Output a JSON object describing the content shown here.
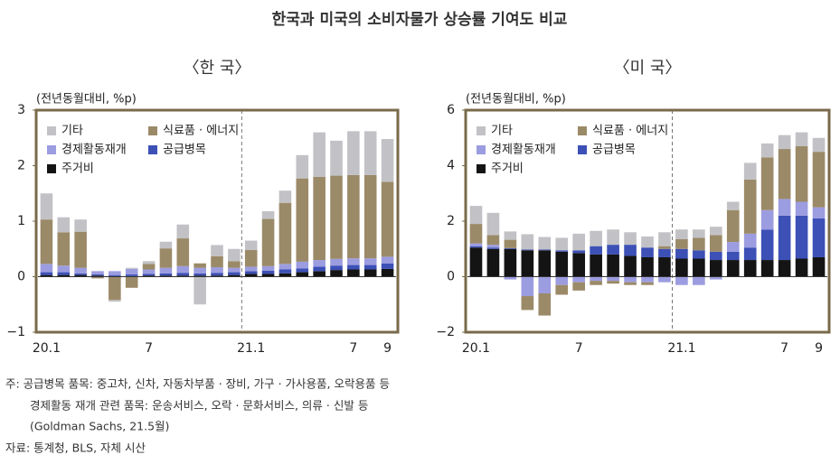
{
  "title": "한국과 미국의 소비자물가 상승률 기여도 비교",
  "chart_data": [
    {
      "type": "bar",
      "stacked": true,
      "subtitle": "〈한 국〉",
      "unit": "(전년동월대비, %p)",
      "categories": [
        "20.1",
        null,
        null,
        null,
        null,
        null,
        "7",
        null,
        null,
        null,
        null,
        null,
        "21.1",
        null,
        null,
        null,
        null,
        null,
        "7",
        null,
        "9"
      ],
      "ylim": [
        -1,
        3
      ],
      "yticks": [
        {
          "value": -1,
          "label": "−1"
        },
        0,
        1,
        2,
        3
      ],
      "series": [
        {
          "name": "기타",
          "color": "#c2c2c6",
          "values": [
            0.47,
            0.27,
            0.22,
            0,
            -0.03,
            0.02,
            0.05,
            0.12,
            0.25,
            -0.5,
            0.2,
            0.22,
            0.17,
            0.14,
            0.22,
            0.42,
            0.8,
            0.63,
            0.79,
            0.79,
            0.77
          ]
        },
        {
          "name": "식료품 · 에너지",
          "color": "#9b8a68",
          "values": [
            0.8,
            0.6,
            0.65,
            -0.03,
            -0.42,
            -0.2,
            0.1,
            0.35,
            0.5,
            0.08,
            0.2,
            0.12,
            0.3,
            0.85,
            1.1,
            1.5,
            1.5,
            1.5,
            1.5,
            1.5,
            1.35
          ]
        },
        {
          "name": "경제활동재개",
          "color": "#9c9ce0",
          "values": [
            0.15,
            0.12,
            0.1,
            0.06,
            0.07,
            0.1,
            0.08,
            0.1,
            0.12,
            0.1,
            0.1,
            0.08,
            0.08,
            0.08,
            0.1,
            0.12,
            0.12,
            0.12,
            0.12,
            0.12,
            0.12
          ]
        },
        {
          "name": "공급병목",
          "color": "#3c50b6",
          "values": [
            0.05,
            0.05,
            0.03,
            0.02,
            0.02,
            0.03,
            0.03,
            0.04,
            0.05,
            0.04,
            0.05,
            0.05,
            0.05,
            0.06,
            0.07,
            0.07,
            0.08,
            0.08,
            0.08,
            0.08,
            0.1
          ]
        },
        {
          "name": "주거비",
          "color": "#141414",
          "values": [
            0.03,
            0.03,
            0.03,
            0.02,
            0.01,
            0.01,
            0.02,
            0.02,
            0.02,
            0.02,
            0.02,
            0.03,
            0.05,
            0.05,
            0.06,
            0.08,
            0.1,
            0.12,
            0.13,
            0.13,
            0.14
          ]
        }
      ]
    },
    {
      "type": "bar",
      "stacked": true,
      "subtitle": "〈미 국〉",
      "unit": "(전년동월대비, %p)",
      "categories": [
        "20.1",
        null,
        null,
        null,
        null,
        null,
        "7",
        null,
        null,
        null,
        null,
        null,
        "21.1",
        null,
        null,
        null,
        null,
        null,
        "7",
        null,
        "9"
      ],
      "ylim": [
        -2,
        6
      ],
      "yticks": [
        {
          "value": -2,
          "label": "−2"
        },
        0,
        2,
        4,
        6
      ],
      "series": [
        {
          "name": "기타",
          "color": "#c2c2c6",
          "values": [
            0.65,
            0.8,
            0.3,
            0.55,
            0.45,
            0.45,
            0.6,
            0.55,
            0.55,
            0.45,
            0.4,
            0.5,
            0.35,
            0.3,
            0.3,
            0.3,
            0.6,
            0.5,
            0.5,
            0.5,
            0.5
          ]
        },
        {
          "name": "식료품 · 에너지",
          "color": "#9b8a68",
          "values": [
            0.7,
            0.35,
            0.3,
            -0.5,
            -0.8,
            -0.35,
            -0.3,
            -0.15,
            -0.1,
            -0.1,
            -0.1,
            0.1,
            0.35,
            0.45,
            0.6,
            1.15,
            1.95,
            1.9,
            1.8,
            2.0,
            2.0
          ]
        },
        {
          "name": "경제활동재개",
          "color": "#9c9ce0",
          "values": [
            0.1,
            0.1,
            -0.1,
            -0.7,
            -0.6,
            -0.3,
            -0.2,
            -0.15,
            -0.15,
            -0.2,
            -0.2,
            -0.2,
            -0.3,
            -0.3,
            -0.1,
            0.35,
            0.5,
            0.7,
            0.6,
            0.5,
            0.4
          ]
        },
        {
          "name": "공급병목",
          "color": "#3c50b6",
          "values": [
            0.05,
            0.05,
            0.03,
            0.03,
            0.03,
            0.05,
            0.1,
            0.3,
            0.35,
            0.4,
            0.35,
            0.3,
            0.35,
            0.3,
            0.3,
            0.3,
            0.45,
            1.1,
            1.6,
            1.55,
            1.4
          ]
        },
        {
          "name": "주거비",
          "color": "#141414",
          "values": [
            1.05,
            1.0,
            1.0,
            0.95,
            0.95,
            0.9,
            0.85,
            0.8,
            0.8,
            0.75,
            0.7,
            0.7,
            0.65,
            0.65,
            0.6,
            0.6,
            0.6,
            0.6,
            0.6,
            0.65,
            0.7
          ]
        }
      ]
    }
  ],
  "notes": [
    "주: 공급병목 품목: 중고차, 신차, 자동차부품 · 장비, 가구 · 가사용품, 오락용품 등",
    "경제활동 재개 관련 품목: 운송서비스, 오락 · 문화서비스, 의류 · 신발 등",
    "(Goldman Sachs, 21.5월)"
  ],
  "source": "자료: 통계청, BLS, 자체 시산"
}
